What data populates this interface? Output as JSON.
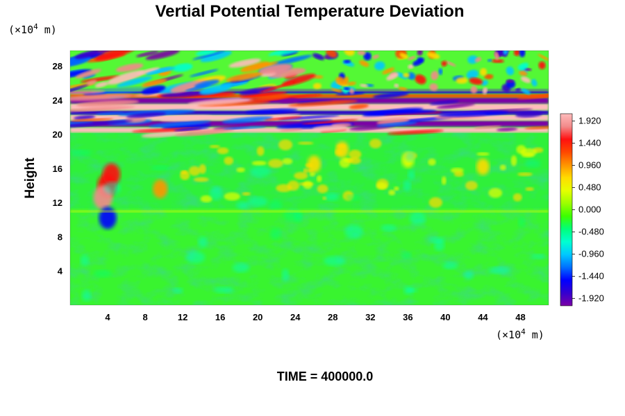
{
  "chart_data": {
    "type": "heatmap",
    "title": "Vertial Potential Temperature Deviation",
    "ylabel": "Height",
    "xlabel": "",
    "x_unit": "(×10",
    "x_unit_exp": "4",
    "x_unit_tail": " m)",
    "y_unit": "(×10",
    "y_unit_exp": "4",
    "y_unit_tail": " m)",
    "time_label": "TIME = 400000.0",
    "xlim": [
      0,
      51
    ],
    "ylim": [
      0,
      29.8
    ],
    "x_ticks": [
      "4",
      "8",
      "12",
      "16",
      "20",
      "24",
      "28",
      "32",
      "36",
      "40",
      "44",
      "48"
    ],
    "x_tick_values": [
      4,
      8,
      12,
      16,
      20,
      24,
      28,
      32,
      36,
      40,
      44,
      48
    ],
    "y_ticks": [
      "4",
      "8",
      "12",
      "16",
      "20",
      "24",
      "28"
    ],
    "y_tick_values": [
      4,
      8,
      12,
      16,
      20,
      24,
      28
    ],
    "colorbar": {
      "min": -2.08,
      "max": 2.08,
      "labels": [
        "1.920",
        "1.440",
        "0.960",
        "0.480",
        "0.000",
        "-0.480",
        "-0.960",
        "-1.440",
        "-1.920"
      ],
      "values": [
        1.92,
        1.44,
        0.96,
        0.48,
        0.0,
        -0.48,
        -0.96,
        -1.44,
        -1.92
      ],
      "stops": [
        "#7b00a6",
        "#3500cf",
        "#0000ff",
        "#0070ff",
        "#00c8ff",
        "#00ffd0",
        "#00ff7a",
        "#3cff00",
        "#9cff00",
        "#e6ff00",
        "#ffdc00",
        "#ff9400",
        "#ff4800",
        "#ff1010",
        "#f28a8a",
        "#ffbcbc"
      ]
    },
    "bands": [
      {
        "y_from": 19.8,
        "y_to": 25.0,
        "description": "strong stratified layer"
      },
      {
        "y_from": 25.0,
        "y_to": 29.8,
        "description": "gravity wave region"
      }
    ],
    "features": [
      {
        "x": 3.9,
        "y": 14.0,
        "value": 1.6
      },
      {
        "x": 4.4,
        "y": 15.3,
        "value": 1.4
      },
      {
        "x": 3.5,
        "y": 12.6,
        "value": 1.7
      },
      {
        "x": 4.0,
        "y": 10.2,
        "value": -1.4
      },
      {
        "x": 9.6,
        "y": 13.6,
        "value": 0.9
      },
      {
        "x": 26.0,
        "y": 16.5,
        "value": 0.7
      },
      {
        "x": 29.0,
        "y": 18.2,
        "value": 0.6
      },
      {
        "x": 36.0,
        "y": 17.0,
        "value": 0.5
      },
      {
        "x": 44.0,
        "y": 16.2,
        "value": 0.6
      }
    ]
  }
}
